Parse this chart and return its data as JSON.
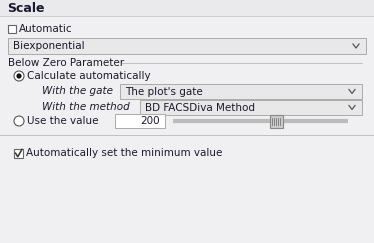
{
  "bg_color": "#f0f0f2",
  "header_color": "#eaeaec",
  "title_text": "Scale",
  "checkbox_automatic_label": "Automatic",
  "dropdown_biexponential": "Biexponential",
  "section_label": "Below Zero Parameter",
  "radio_calculate": "Calculate automatically",
  "label_gate": "With the gate",
  "dropdown_gate": "The plot's gate",
  "label_method": "With the method",
  "dropdown_method": "BD FACSDiva Method",
  "radio_value": "Use the value",
  "value_box": "200",
  "checkbox_auto_min": "Automatically set the minimum value",
  "dropdown_bg": "#e8e8e8",
  "input_bg": "#ffffff",
  "border_color": "#aaaaaa",
  "text_color": "#1a1a2e",
  "separator_color": "#c0c0c0",
  "font_size": 7.5
}
